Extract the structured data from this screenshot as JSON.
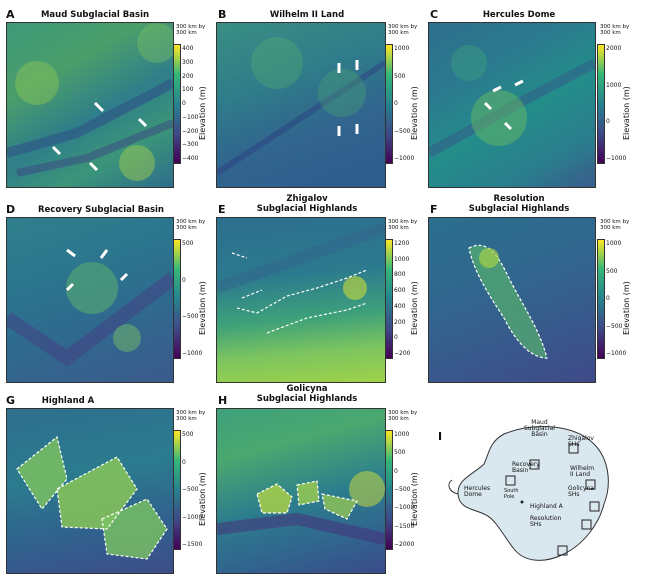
{
  "panels": [
    {
      "letter": "A",
      "title": [
        "Maud Subglacial Basin"
      ],
      "note": [
        "300 km by",
        "300 km"
      ],
      "ticks": [
        "400",
        "300",
        "200",
        "100",
        "0",
        "−100",
        "−200",
        "−300",
        "−400"
      ],
      "axis": "Elevation (m)"
    },
    {
      "letter": "B",
      "title": [
        "Wilhelm II Land"
      ],
      "note": [
        "300 km by",
        "300 km"
      ],
      "ticks": [
        "1000",
        "500",
        "0",
        "−500",
        "−1000"
      ],
      "axis": "Elevation (m)"
    },
    {
      "letter": "C",
      "title": [
        "Hercules Dome"
      ],
      "note": [
        "300 km by",
        "300 km"
      ],
      "ticks": [
        "2000",
        "1000",
        "0",
        "−1000"
      ],
      "axis": "Elevation (m)"
    },
    {
      "letter": "D",
      "title": [
        "Recovery Subglacial Basin"
      ],
      "note": [
        "300 km by",
        "300 km"
      ],
      "ticks": [
        "500",
        "0",
        "−500",
        "−1000"
      ],
      "axis": "Elevation (m)"
    },
    {
      "letter": "E",
      "title": [
        "Zhigalov",
        "Subglacial Highlands"
      ],
      "note": [
        "300 km by",
        "300 km"
      ],
      "ticks": [
        "1200",
        "1000",
        "800",
        "600",
        "400",
        "200",
        "0",
        "−200"
      ],
      "axis": "Elevation (m)"
    },
    {
      "letter": "F",
      "title": [
        "Resolution",
        "Subglacial Highlands"
      ],
      "note": [
        "300 km by",
        "300 km"
      ],
      "ticks": [
        "1000",
        "500",
        "0",
        "−500",
        "−1000"
      ],
      "axis": "Elevation (m)"
    },
    {
      "letter": "G",
      "title": [
        "Highland A"
      ],
      "note": [
        "300 km by",
        "300 km"
      ],
      "ticks": [
        "500",
        "0",
        "−500",
        "−1000",
        "−1500"
      ],
      "axis": "Elevation (m)"
    },
    {
      "letter": "H",
      "title": [
        "Golicyna",
        "Subglacial Highlands"
      ],
      "note": [
        "300 km by",
        "300 km"
      ],
      "ticks": [
        "1000",
        "500",
        "0",
        "−500",
        "−1000",
        "−1500",
        "−2000"
      ],
      "axis": "Elevation (m)"
    }
  ],
  "overview": {
    "letter": "I",
    "labels": {
      "maud": [
        "Maud",
        "Subglacial",
        "Basin"
      ],
      "zhigalov": [
        "Zhigalov",
        "SHs"
      ],
      "recovery": [
        "Recovery",
        "Basin"
      ],
      "wilhelm": [
        "Wilhelm",
        "II Land"
      ],
      "hercules": [
        "Hercules",
        "Dome"
      ],
      "south_pole": [
        "South",
        "Pole"
      ],
      "golicyna": [
        "Golicyna",
        "SHs"
      ],
      "highland": [
        "Highland A"
      ],
      "resolution": [
        "Resolution",
        "SHs"
      ]
    }
  },
  "colors": {
    "low": "#440154",
    "mid": "#21918c",
    "high": "#fde725"
  }
}
